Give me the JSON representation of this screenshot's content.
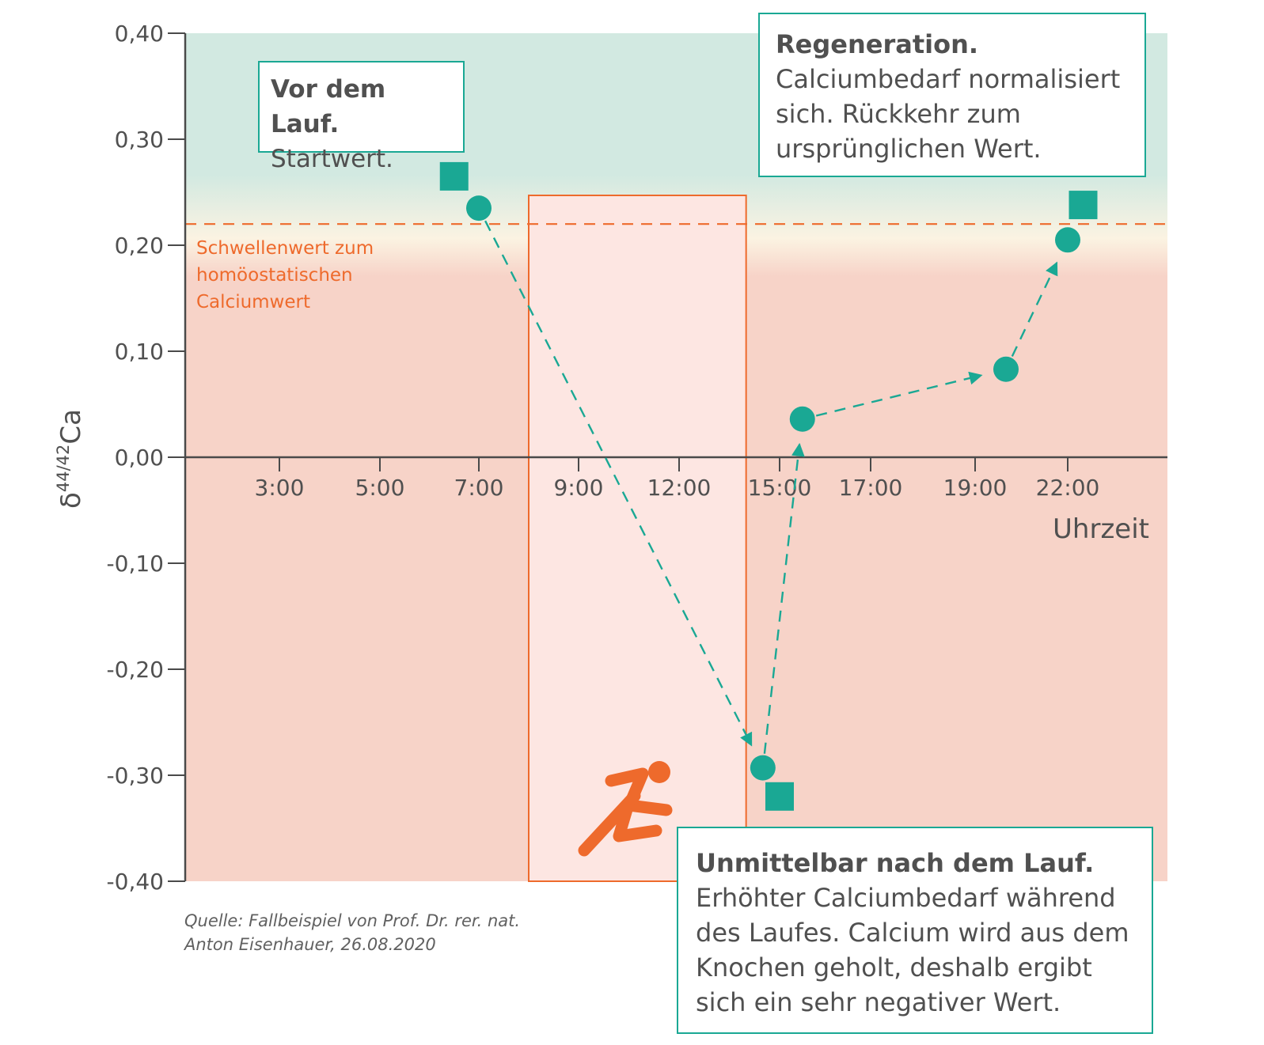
{
  "chart_data": {
    "type": "scatter",
    "title": "",
    "xlabel": "Uhrzeit",
    "ylabel": "δ44/42Ca",
    "ylabel_parts": {
      "symbol": "δ",
      "sup": "44/42",
      "element": "Ca"
    },
    "x_tick_labels": [
      "3:00",
      "5:00",
      "7:00",
      "9:00",
      "12:00",
      "15:00",
      "17:00",
      "19:00",
      "22:00"
    ],
    "y_ticks": [
      0.4,
      0.3,
      0.2,
      0.1,
      0.0,
      -0.1,
      -0.2,
      -0.3,
      -0.4
    ],
    "y_tick_labels": [
      "0,40",
      "0,30",
      "0,20",
      "0,10",
      "0,00",
      "-0,10",
      "-0,20",
      "-0,30",
      "-0,40"
    ],
    "ylim": [
      -0.4,
      0.4
    ],
    "threshold": {
      "value": 0.22,
      "label_lines": [
        "Schwellenwert zum",
        "homöostatischen",
        "Calciumwert"
      ]
    },
    "run_window": {
      "from": "8:00",
      "to": "14:00"
    },
    "series": [
      {
        "marker": "circle",
        "points": [
          {
            "time": "7:00",
            "value": 0.235
          },
          {
            "time": "14:30",
            "value": -0.293
          },
          {
            "time": "15:30",
            "value": 0.036
          },
          {
            "time": "20:00",
            "value": 0.083
          },
          {
            "time": "22:00",
            "value": 0.205
          }
        ]
      },
      {
        "marker": "square",
        "points": [
          {
            "time": "6:30",
            "value": 0.265
          },
          {
            "time": "15:00",
            "value": -0.32
          },
          {
            "time": "22:30",
            "value": 0.238
          }
        ]
      }
    ]
  },
  "colors": {
    "teal": "#1aa894",
    "orange": "#ee6a2c",
    "zone_high": "#d2e9e1",
    "zone_low": "#f7d3c8",
    "run_fill": "#fde6e2",
    "axis": "#4a4a4a",
    "text": "#505050"
  },
  "icons": {
    "runner": "runner-icon"
  },
  "callouts": {
    "start": {
      "head": "Vor dem Lauf.",
      "lines": [
        "Startwert."
      ]
    },
    "regen": {
      "head": "Regeneration.",
      "lines": [
        "Calciumbedarf normalisiert",
        "sich. Rückkehr zum",
        "ursprünglichen Wert."
      ]
    },
    "after": {
      "head": "Unmittelbar nach dem Lauf.",
      "lines": [
        "Erhöhter Calciumbedarf während",
        "des Laufes. Calcium wird aus dem",
        "Knochen geholt, deshalb ergibt",
        "sich ein sehr negativer Wert."
      ]
    }
  },
  "source": {
    "lines": [
      "Quelle: Fallbeispiel von Prof. Dr. rer. nat.",
      "Anton Eisenhauer, 26.08.2020"
    ]
  }
}
